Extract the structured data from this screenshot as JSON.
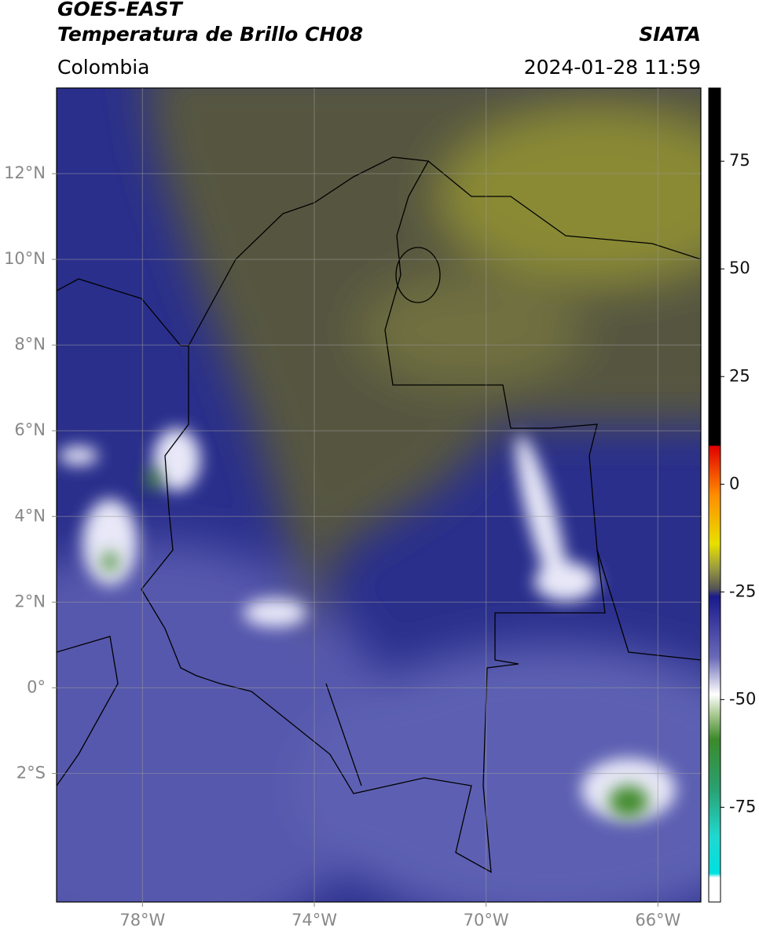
{
  "chart_data": {
    "type": "map",
    "title": "GOES-EAST",
    "subtitle": "Temperatura de Brillo CH08",
    "source": "SIATA",
    "region": "Colombia",
    "datetime": "2024-01-28 11:59",
    "xlim": [
      -80,
      -65
    ],
    "ylim": [
      -5,
      14
    ],
    "xticks": [
      {
        "value": -78,
        "label": "78°W"
      },
      {
        "value": -74,
        "label": "74°W"
      },
      {
        "value": -70,
        "label": "70°W"
      },
      {
        "value": -66,
        "label": "66°W"
      }
    ],
    "yticks": [
      {
        "value": -2,
        "label": "2°S"
      },
      {
        "value": 0,
        "label": "0°"
      },
      {
        "value": 2,
        "label": "2°N"
      },
      {
        "value": 4,
        "label": "4°N"
      },
      {
        "value": 6,
        "label": "6°N"
      },
      {
        "value": 8,
        "label": "8°N"
      },
      {
        "value": 10,
        "label": "10°N"
      },
      {
        "value": 12,
        "label": "12°N"
      }
    ],
    "grid": true,
    "colorbar": {
      "lim": [
        -97,
        92
      ],
      "ticks": [
        -75,
        -50,
        -25,
        0,
        25,
        50,
        75
      ]
    }
  }
}
